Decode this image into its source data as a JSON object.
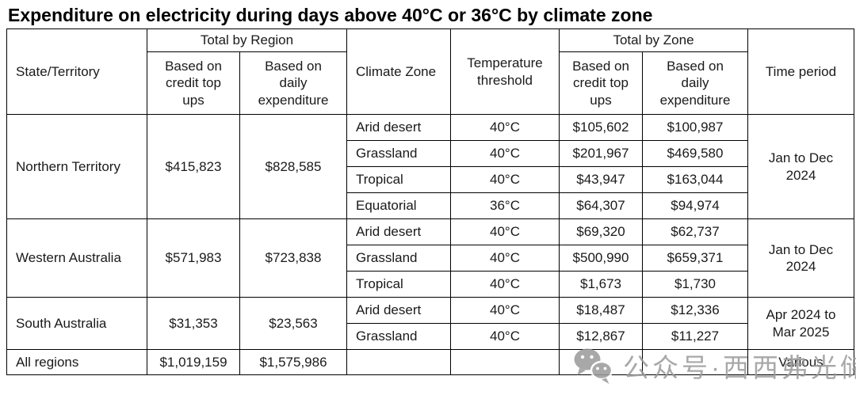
{
  "title": "Expenditure on electricity during days above 40°C or 36°C by climate zone",
  "table": {
    "header": {
      "state": "State/Territory",
      "total_by_region": "Total by Region",
      "based_on_credit": "Based on\ncredit top\nups",
      "based_on_daily": "Based on\ndaily\nexpenditure",
      "climate_zone": "Climate Zone",
      "temperature_threshold": "Temperature\nthreshold",
      "total_by_zone": "Total by Zone",
      "time_period": "Time period"
    },
    "groups": [
      {
        "state": "Northern Territory",
        "region_credit": "$415,823",
        "region_daily": "$828,585",
        "time_period": "Jan to Dec\n2024",
        "zones": [
          {
            "zone": "Arid desert",
            "threshold": "40°C",
            "credit": "$105,602",
            "daily": "$100,987"
          },
          {
            "zone": "Grassland",
            "threshold": "40°C",
            "credit": "$201,967",
            "daily": "$469,580"
          },
          {
            "zone": "Tropical",
            "threshold": "40°C",
            "credit": "$43,947",
            "daily": "$163,044"
          },
          {
            "zone": "Equatorial",
            "threshold": "36°C",
            "credit": "$64,307",
            "daily": "$94,974"
          }
        ]
      },
      {
        "state": "Western Australia",
        "region_credit": "$571,983",
        "region_daily": "$723,838",
        "time_period": "Jan to Dec\n2024",
        "zones": [
          {
            "zone": "Arid desert",
            "threshold": "40°C",
            "credit": "$69,320",
            "daily": "$62,737"
          },
          {
            "zone": "Grassland",
            "threshold": "40°C",
            "credit": "$500,990",
            "daily": "$659,371"
          },
          {
            "zone": "Tropical",
            "threshold": "40°C",
            "credit": "$1,673",
            "daily": "$1,730"
          }
        ]
      },
      {
        "state": "South Australia",
        "region_credit": "$31,353",
        "region_daily": "$23,563",
        "time_period": "Apr 2024 to\nMar 2025",
        "zones": [
          {
            "zone": "Arid desert",
            "threshold": "40°C",
            "credit": "$18,487",
            "daily": "$12,336"
          },
          {
            "zone": "Grassland",
            "threshold": "40°C",
            "credit": "$12,867",
            "daily": "$11,227"
          }
        ]
      }
    ],
    "total_row": {
      "state": "All regions",
      "region_credit": "$1,019,159",
      "region_daily": "$1,575,986",
      "zone": "",
      "threshold": "",
      "credit": "",
      "daily": "",
      "time_period": "Various"
    }
  },
  "watermark": {
    "icon": "wechat-icon",
    "text": "公众号·西西弗光储",
    "color": "#9a9a9a"
  }
}
